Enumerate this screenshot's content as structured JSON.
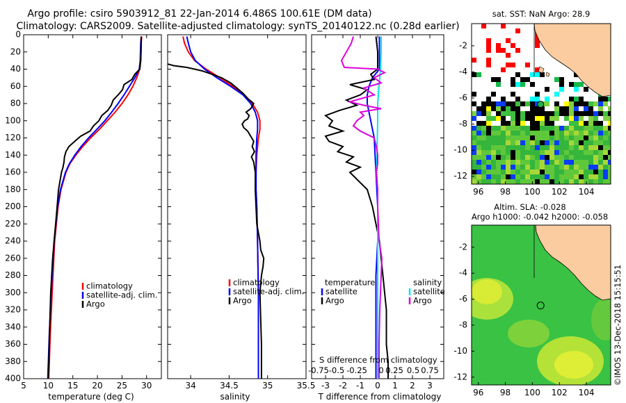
{
  "title": {
    "line1": "Argo profile: csiro 5903912_81 22-Jan-2014 6.486S 100.61E (DM data)",
    "line2": "Climatology: CARS2009. Satellite-adjusted climatology: synTS_20140122.nc (0.28d earlier)"
  },
  "colors": {
    "climatology": "#ff0000",
    "satellite": "#0000ff",
    "argo": "#000000",
    "argo_s": "#dd00dd",
    "sat_s": "#00e5ee"
  },
  "depth_ticks": [
    "0",
    "20",
    "40",
    "60",
    "80",
    "100",
    "120",
    "140",
    "160",
    "180",
    "200",
    "220",
    "240",
    "260",
    "280",
    "300",
    "320",
    "340",
    "360",
    "380",
    "400"
  ],
  "chart_data": [
    {
      "type": "line",
      "panel": "temperature",
      "xlabel": "temperature (deg C)",
      "ylabel": "depth",
      "xlim": [
        5,
        33
      ],
      "ylim": [
        400,
        0
      ],
      "x_ticks": [
        "5",
        "10",
        "15",
        "20",
        "25",
        "30"
      ],
      "x_tick_values": [
        5,
        10,
        15,
        20,
        25,
        30
      ],
      "legend": [
        "climatology",
        "satellite-adj. clim.",
        "Argo"
      ],
      "series": [
        {
          "name": "climatology",
          "key": "climatology",
          "depth": [
            2,
            10,
            20,
            30,
            40,
            50,
            60,
            70,
            80,
            90,
            100,
            110,
            120,
            130,
            140,
            150,
            160,
            180,
            200,
            240,
            300,
            350,
            400
          ],
          "values": [
            29.0,
            28.9,
            28.85,
            28.8,
            28.6,
            28.0,
            27.2,
            26.2,
            25.0,
            23.6,
            22.0,
            20.4,
            18.6,
            17.0,
            15.6,
            14.4,
            13.6,
            12.6,
            12.0,
            11.3,
            10.8,
            10.4,
            10.1
          ]
        },
        {
          "name": "satellite-adj. clim.",
          "key": "satellite",
          "depth": [
            2,
            10,
            20,
            30,
            40,
            50,
            60,
            70,
            80,
            90,
            100,
            110,
            120,
            130,
            140,
            150,
            160,
            180,
            200,
            240,
            300,
            350,
            400
          ],
          "values": [
            28.9,
            28.8,
            28.75,
            28.7,
            28.5,
            27.6,
            26.5,
            25.4,
            24.2,
            22.9,
            21.5,
            19.9,
            18.2,
            16.7,
            15.4,
            14.3,
            13.5,
            12.5,
            11.9,
            11.2,
            10.6,
            10.2,
            9.9
          ]
        },
        {
          "name": "Argo",
          "key": "argo",
          "depth": [
            2,
            10,
            20,
            30,
            40,
            46,
            52,
            58,
            64,
            70,
            76,
            82,
            88,
            94,
            100,
            106,
            112,
            118,
            124,
            130,
            136,
            142,
            148,
            154,
            160,
            170,
            180,
            200,
            220,
            240,
            260,
            300,
            340,
            380,
            400
          ],
          "values": [
            28.9,
            28.9,
            28.85,
            28.8,
            28.6,
            27.6,
            27.0,
            25.4,
            25.1,
            24.2,
            23.2,
            22.8,
            22.1,
            20.9,
            20.3,
            19.2,
            18.5,
            16.6,
            15.4,
            14.2,
            13.6,
            13.3,
            13.2,
            13.0,
            12.7,
            12.4,
            12.1,
            11.8,
            11.5,
            11.2,
            10.9,
            10.5,
            10.3,
            10.1,
            10.0
          ]
        }
      ]
    },
    {
      "type": "line",
      "panel": "salinity",
      "xlabel": "salinity",
      "ylabel": "depth",
      "xlim": [
        33.7,
        35.5
      ],
      "ylim": [
        400,
        0
      ],
      "x_ticks": [
        "34",
        "34.5",
        "35",
        "35.5"
      ],
      "x_tick_values": [
        34,
        34.5,
        35,
        35.5
      ],
      "legend": [
        "climatology",
        "satellite-adj. clim.",
        "Argo"
      ],
      "series": [
        {
          "name": "climatology",
          "key": "climatology",
          "depth": [
            2,
            10,
            20,
            30,
            40,
            50,
            60,
            70,
            80,
            90,
            100,
            110,
            120,
            140,
            160,
            180,
            200,
            240,
            300,
            350,
            400
          ],
          "values": [
            33.9,
            33.92,
            33.97,
            34.05,
            34.2,
            34.38,
            34.55,
            34.7,
            34.8,
            34.87,
            34.9,
            34.9,
            34.88,
            34.86,
            34.85,
            34.85,
            34.86,
            34.87,
            34.88,
            34.88,
            34.88
          ]
        },
        {
          "name": "satellite-adj. clim.",
          "key": "satellite",
          "depth": [
            2,
            10,
            20,
            30,
            40,
            50,
            60,
            70,
            80,
            90,
            100,
            110,
            120,
            140,
            160,
            180,
            200,
            240,
            300,
            350,
            400
          ],
          "values": [
            33.95,
            33.97,
            34.0,
            34.06,
            34.18,
            34.34,
            34.52,
            34.68,
            34.78,
            34.84,
            34.87,
            34.87,
            34.86,
            34.85,
            34.85,
            34.85,
            34.86,
            34.87,
            34.88,
            34.88,
            34.88
          ]
        },
        {
          "name": "Argo",
          "key": "argo",
          "depth": [
            34,
            36,
            38,
            40,
            42,
            46,
            50,
            56,
            62,
            68,
            74,
            80,
            86,
            90,
            94,
            98,
            100,
            104,
            108,
            112,
            118,
            124,
            130,
            136,
            142,
            148,
            160,
            180,
            200,
            220,
            240,
            250,
            260,
            270,
            280,
            300,
            330,
            360,
            400
          ],
          "values": [
            33.7,
            33.78,
            33.95,
            34.05,
            34.15,
            34.28,
            34.4,
            34.52,
            34.6,
            34.68,
            34.74,
            34.82,
            34.78,
            34.72,
            34.76,
            34.74,
            34.7,
            34.67,
            34.69,
            34.74,
            34.78,
            34.82,
            34.8,
            34.83,
            34.79,
            34.82,
            34.84,
            34.84,
            34.85,
            34.86,
            34.9,
            34.91,
            34.95,
            34.94,
            34.92,
            34.9,
            34.91,
            34.92,
            34.92
          ]
        }
      ]
    },
    {
      "type": "line",
      "panel": "difference",
      "xlabel": "T difference from climatology",
      "xlabel_top": "S difference from climatology",
      "ylabel": "depth",
      "xlim": [
        -3.8,
        3.8
      ],
      "ylim": [
        400,
        0
      ],
      "x_ticks": [
        "-3",
        "-2",
        "-1",
        "0",
        "1",
        "2",
        "3"
      ],
      "x_tick_values": [
        -3,
        -2,
        -1,
        0,
        1,
        2,
        3
      ],
      "s_ticks": [
        "-0.75",
        "-0.5",
        "-0.25",
        "0",
        "0.25",
        "0.5",
        "0.75"
      ],
      "legend_t": [
        "temperature",
        "satellite",
        "Argo"
      ],
      "legend_s": [
        "salinity",
        "satellite",
        "Argo"
      ],
      "series": [
        {
          "name": "temperature satellite",
          "key": "satellite",
          "depth": [
            2,
            20,
            40,
            50,
            60,
            70,
            80,
            90,
            100,
            120,
            160,
            200,
            240,
            280,
            320,
            360,
            400
          ],
          "values": [
            0.1,
            0.1,
            0.1,
            -0.3,
            -0.5,
            -0.6,
            -0.6,
            -0.5,
            -0.4,
            -0.2,
            -0.1,
            0.0,
            0.0,
            -0.1,
            -0.1,
            -0.1,
            -0.1
          ]
        },
        {
          "name": "temperature Argo",
          "key": "argo",
          "depth": [
            2,
            20,
            40,
            46,
            52,
            58,
            64,
            70,
            76,
            82,
            88,
            94,
            100,
            106,
            112,
            118,
            124,
            130,
            136,
            142,
            148,
            154,
            160,
            170,
            180,
            200,
            220,
            240,
            260,
            280,
            300,
            320,
            340,
            360,
            380,
            400
          ],
          "values": [
            -0.1,
            0.0,
            0.0,
            -0.4,
            -0.2,
            -1.6,
            -0.6,
            -1.0,
            -1.8,
            -1.2,
            -2.2,
            -3.0,
            -2.6,
            -2.8,
            -2.0,
            -3.0,
            -2.8,
            -2.0,
            -2.3,
            -1.4,
            -1.8,
            -1.0,
            -1.6,
            -1.1,
            -0.6,
            -0.3,
            -0.1,
            0.1,
            0.2,
            0.3,
            0.4,
            0.5,
            0.5,
            0.5,
            0.6,
            0.6
          ]
        },
        {
          "name": "salinity satellite",
          "key": "sat_s",
          "depth": [
            2,
            20,
            40,
            60,
            80,
            100,
            140,
            160,
            180,
            200,
            240,
            280,
            320,
            360,
            400
          ],
          "values": [
            0.05,
            0.05,
            0.04,
            0.02,
            0.0,
            0.0,
            -0.01,
            -0.02,
            0.0,
            0.0,
            0.0,
            0.0,
            0.0,
            0.0,
            0.0
          ]
        },
        {
          "name": "salinity Argo",
          "key": "argo_s",
          "depth": [
            2,
            10,
            20,
            30,
            38,
            40,
            44,
            50,
            56,
            62,
            70,
            78,
            82,
            86,
            90,
            94,
            100,
            106,
            112,
            120,
            130,
            140,
            150,
            160,
            180,
            200,
            240,
            260,
            280,
            300,
            320,
            360,
            400
          ],
          "values": [
            -0.35,
            -0.38,
            -0.45,
            -0.52,
            -0.48,
            0.0,
            0.1,
            -0.05,
            0.05,
            -0.2,
            -0.05,
            -0.4,
            -0.2,
            0.05,
            -0.25,
            -0.2,
            -0.3,
            -0.35,
            -0.25,
            -0.05,
            -0.02,
            0.0,
            0.0,
            -0.02,
            0.0,
            0.0,
            0.02,
            0.06,
            0.05,
            0.04,
            0.03,
            0.02,
            0.02
          ]
        }
      ]
    },
    {
      "type": "heatmap",
      "panel": "sst_map",
      "title": "sat. SST: NaN Argo: 28.9",
      "x_ticks": [
        "96",
        "98",
        "100",
        "102",
        "104"
      ],
      "x_tick_values": [
        96,
        98,
        100,
        102,
        104
      ],
      "y_ticks": [
        "-2",
        "-4",
        "-6",
        "-8",
        "-10",
        "-12"
      ],
      "y_tick_values": [
        -2,
        -4,
        -6,
        -8,
        -10,
        -12
      ],
      "xlim": [
        95.5,
        105.8
      ],
      "ylim": [
        -12.6,
        -0.3
      ],
      "argo_position": {
        "lon": 100.61,
        "lat": -6.486
      }
    },
    {
      "type": "heatmap",
      "panel": "sla_map",
      "title": "Altim. SLA: -0.028",
      "title2": "Argo h1000: -0.042 h2000: -0.058",
      "x_ticks": [
        "96",
        "98",
        "100",
        "102",
        "104"
      ],
      "x_tick_values": [
        96,
        98,
        100,
        102,
        104
      ],
      "y_ticks": [
        "-2",
        "-4",
        "-6",
        "-8",
        "-10",
        "-12"
      ],
      "y_tick_values": [
        -2,
        -4,
        -6,
        -8,
        -10,
        -12
      ],
      "xlim": [
        95.5,
        105.8
      ],
      "ylim": [
        -12.6,
        -0.3
      ],
      "argo_position": {
        "lon": 100.61,
        "lat": -6.486
      }
    }
  ],
  "credit": "©IMOS 13-Dec-2018 15:15:51"
}
